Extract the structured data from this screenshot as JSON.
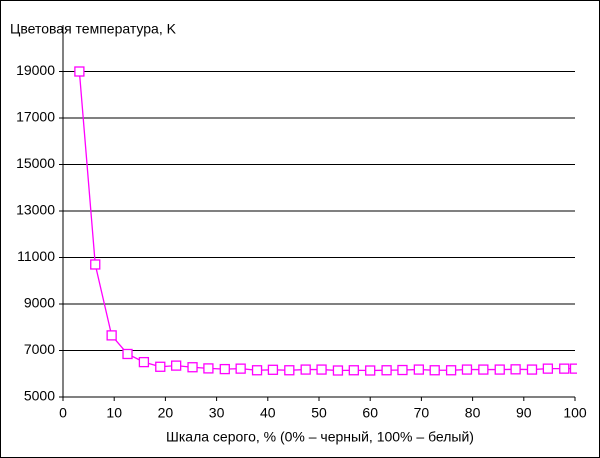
{
  "chart_data": {
    "type": "line",
    "title": "Цветовая температура,  K",
    "x_label": "Шкала серого, % (0% – черный,  100% – белый)",
    "x": [
      3.2,
      6.3,
      9.5,
      12.6,
      15.8,
      19,
      22.1,
      25.3,
      28.4,
      31.6,
      34.7,
      37.9,
      41,
      44.2,
      47.4,
      50.5,
      53.7,
      56.8,
      60,
      63.2,
      66.3,
      69.5,
      72.6,
      75.8,
      78.9,
      82.1,
      85.3,
      88.4,
      91.6,
      94.7,
      97.9,
      100
    ],
    "series": [
      {
        "color": "#ff00ff",
        "values": [
          19000,
          10700,
          7650,
          6850,
          6500,
          6300,
          6350,
          6280,
          6230,
          6200,
          6220,
          6150,
          6170,
          6150,
          6180,
          6180,
          6140,
          6150,
          6140,
          6150,
          6160,
          6180,
          6150,
          6150,
          6180,
          6180,
          6180,
          6190,
          6180,
          6220,
          6220,
          6220
        ]
      }
    ],
    "xlim": [
      0,
      100
    ],
    "xticks": [
      0,
      10,
      20,
      30,
      40,
      50,
      60,
      70,
      80,
      90,
      100
    ],
    "ylim": [
      5000,
      21000
    ],
    "yticks": [
      5000,
      7000,
      9000,
      11000,
      13000,
      15000,
      17000,
      19000
    ],
    "grid": true
  }
}
